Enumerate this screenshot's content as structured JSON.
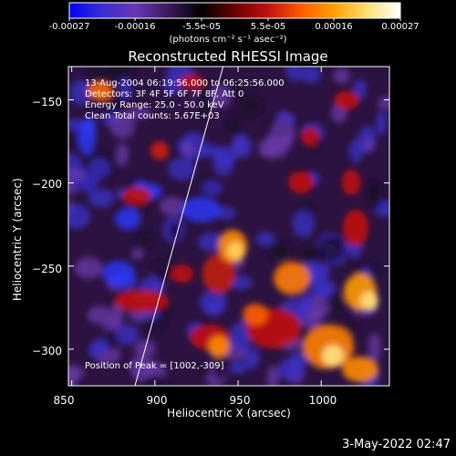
{
  "colorbar": {
    "ticks": [
      "-0.00027",
      "-0.00016",
      "-5.5e-05",
      "5.5e-05",
      "0.00016",
      "0.00027"
    ],
    "unit": "(photons cm⁻² s⁻¹ asec⁻²)",
    "colors": [
      "#0000ff",
      "#3a2fd0",
      "#6a35b8",
      "#3a1a5a",
      "#000000",
      "#6a0000",
      "#c01010",
      "#ff5a00",
      "#ffa000",
      "#ffe070",
      "#ffffff"
    ]
  },
  "title": "Reconstructed RHESSI Image",
  "info": {
    "line1": "13-Aug-2004 06:19:56.000 to 06:25:56.000",
    "line2": "Detectors: 3F 4F 5F 6F 7F 8F, Att 0",
    "line3": "Energy Range: 25.0 - 50.0 keV",
    "line4": "Clean     Total counts: 5.67E+03"
  },
  "peak_label": "Position of Peak = [1002,-309]",
  "x_axis": {
    "label": "Heliocentric X (arcsec)",
    "ticks": [
      {
        "value": 850,
        "label": "850"
      },
      {
        "value": 900,
        "label": "900"
      },
      {
        "value": 950,
        "label": "950"
      },
      {
        "value": 1000,
        "label": "1000"
      }
    ],
    "range": [
      848,
      1041
    ]
  },
  "y_axis": {
    "label": "Heliocentric Y (arcsec)",
    "ticks": [
      {
        "value": -150,
        "label": "−150"
      },
      {
        "value": -200,
        "label": "−200"
      },
      {
        "value": -250,
        "label": "−250"
      },
      {
        "value": -300,
        "label": "−300"
      }
    ],
    "range": [
      -322,
      -130
    ]
  },
  "limb_line": {
    "x_start": 888,
    "y_start": -322,
    "x_end": 941,
    "y_end": -130
  },
  "datestamp": "3-May-2022 02:47"
}
